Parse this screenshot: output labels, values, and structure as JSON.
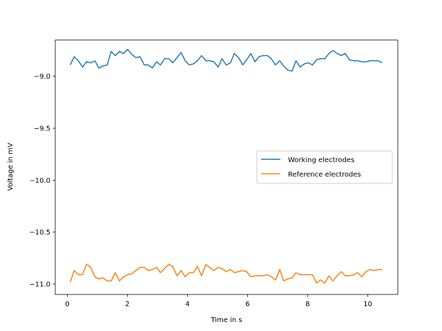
{
  "chart_data": {
    "type": "line",
    "title": "",
    "xlabel": "Time in s",
    "ylabel": "Voltage in mV",
    "xlim": [
      -0.4,
      11.0
    ],
    "ylim": [
      -11.1,
      -8.65
    ],
    "xticks": [
      0,
      2,
      4,
      6,
      8,
      10
    ],
    "yticks": [
      -11.0,
      -10.5,
      -10.0,
      -9.5,
      -9.0
    ],
    "xtick_labels": [
      "0",
      "2",
      "4",
      "6",
      "8",
      "10"
    ],
    "ytick_labels": [
      "−11.0",
      "−10.5",
      "−10.0",
      "−9.5",
      "−9.0"
    ],
    "grid": false,
    "legend_position": "center-right",
    "series": [
      {
        "name": "Working electrodes",
        "color": "#1f77b4",
        "x": [
          0.1,
          0.23,
          0.37,
          0.51,
          0.64,
          0.78,
          0.92,
          1.05,
          1.19,
          1.33,
          1.46,
          1.6,
          1.74,
          1.87,
          2.01,
          2.15,
          2.28,
          2.42,
          2.56,
          2.69,
          2.83,
          2.97,
          3.1,
          3.24,
          3.38,
          3.51,
          3.65,
          3.79,
          3.92,
          4.06,
          4.2,
          4.33,
          4.47,
          4.61,
          4.74,
          4.88,
          5.02,
          5.15,
          5.29,
          5.43,
          5.56,
          5.7,
          5.84,
          5.97,
          6.11,
          6.25,
          6.38,
          6.52,
          6.66,
          6.79,
          6.93,
          7.07,
          7.2,
          7.34,
          7.48,
          7.61,
          7.75,
          7.89,
          8.02,
          8.16,
          8.3,
          8.43,
          8.57,
          8.71,
          8.84,
          8.98,
          9.12,
          9.25,
          9.39,
          9.53,
          9.66,
          9.8,
          9.94,
          10.07,
          10.21,
          10.35,
          10.48
        ],
        "values": [
          -8.89,
          -8.81,
          -8.85,
          -8.91,
          -8.86,
          -8.87,
          -8.85,
          -8.92,
          -8.9,
          -8.89,
          -8.76,
          -8.8,
          -8.76,
          -8.78,
          -8.74,
          -8.79,
          -8.82,
          -8.81,
          -8.89,
          -8.89,
          -8.92,
          -8.86,
          -8.89,
          -8.83,
          -8.83,
          -8.87,
          -8.82,
          -8.77,
          -8.85,
          -8.89,
          -8.88,
          -8.85,
          -8.8,
          -8.85,
          -8.85,
          -8.86,
          -8.91,
          -8.83,
          -8.89,
          -8.87,
          -8.78,
          -8.82,
          -8.89,
          -8.84,
          -8.78,
          -8.86,
          -8.81,
          -8.8,
          -8.8,
          -8.83,
          -8.89,
          -8.85,
          -8.9,
          -8.94,
          -8.95,
          -8.85,
          -8.91,
          -8.88,
          -8.87,
          -8.89,
          -8.84,
          -8.83,
          -8.83,
          -8.78,
          -8.75,
          -8.78,
          -8.8,
          -8.78,
          -8.84,
          -8.85,
          -8.85,
          -8.86,
          -8.86,
          -8.85,
          -8.85,
          -8.85,
          -8.87
        ]
      },
      {
        "name": "Reference electrodes",
        "color": "#ff7f0e",
        "x": [
          0.1,
          0.23,
          0.37,
          0.51,
          0.64,
          0.78,
          0.92,
          1.05,
          1.19,
          1.33,
          1.46,
          1.6,
          1.74,
          1.87,
          2.01,
          2.15,
          2.28,
          2.42,
          2.56,
          2.69,
          2.83,
          2.97,
          3.1,
          3.24,
          3.38,
          3.51,
          3.65,
          3.79,
          3.92,
          4.06,
          4.2,
          4.33,
          4.47,
          4.61,
          4.74,
          4.88,
          5.02,
          5.15,
          5.29,
          5.43,
          5.56,
          5.7,
          5.84,
          5.97,
          6.11,
          6.25,
          6.38,
          6.52,
          6.66,
          6.79,
          6.93,
          7.07,
          7.2,
          7.34,
          7.48,
          7.61,
          7.75,
          7.89,
          8.02,
          8.16,
          8.3,
          8.43,
          8.57,
          8.71,
          8.84,
          8.98,
          9.12,
          9.25,
          9.39,
          9.53,
          9.66,
          9.8,
          9.94,
          10.07,
          10.21,
          10.35,
          10.48
        ],
        "values": [
          -10.98,
          -10.87,
          -10.91,
          -10.91,
          -10.81,
          -10.84,
          -10.93,
          -10.95,
          -10.94,
          -10.97,
          -10.97,
          -10.89,
          -10.97,
          -10.93,
          -10.91,
          -10.9,
          -10.87,
          -10.84,
          -10.84,
          -10.87,
          -10.86,
          -10.84,
          -10.89,
          -10.85,
          -10.81,
          -10.83,
          -10.92,
          -10.87,
          -10.93,
          -10.89,
          -10.89,
          -10.83,
          -10.92,
          -10.81,
          -10.84,
          -10.87,
          -10.84,
          -10.85,
          -10.88,
          -10.86,
          -10.89,
          -10.88,
          -10.87,
          -10.88,
          -10.93,
          -10.92,
          -10.92,
          -10.92,
          -10.91,
          -10.93,
          -10.96,
          -10.86,
          -10.97,
          -10.95,
          -10.94,
          -10.89,
          -10.91,
          -10.91,
          -10.91,
          -10.91,
          -10.99,
          -10.96,
          -10.99,
          -10.92,
          -10.97,
          -10.92,
          -10.88,
          -10.92,
          -10.92,
          -10.91,
          -10.89,
          -10.93,
          -10.88,
          -10.86,
          -10.87,
          -10.86,
          -10.86
        ]
      }
    ]
  }
}
